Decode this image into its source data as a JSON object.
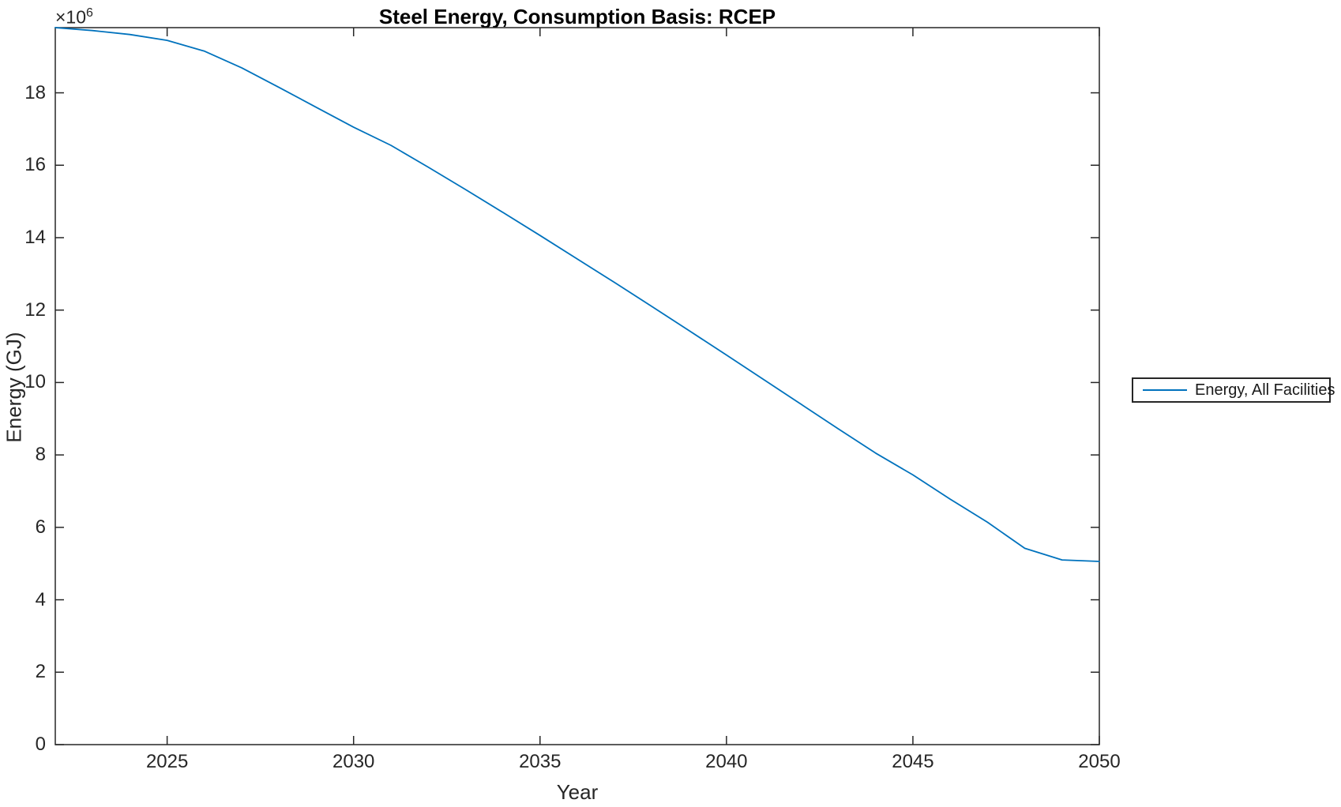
{
  "figure": {
    "title": "Steel Energy, Consumption Basis: RCEP",
    "xlabel": "Year",
    "ylabel": "Energy (GJ)",
    "y_axis_multiplier_base": "×10",
    "y_axis_multiplier_exponent": "6",
    "legend": {
      "position": "outside-right",
      "entries": [
        {
          "label": "Energy, All Facilities",
          "color": "#0072BD"
        }
      ]
    },
    "colors": {
      "line": "#0072BD",
      "axis": "#262626",
      "text": "#1a1a1a",
      "background": "#ffffff"
    }
  },
  "chart_data": {
    "type": "line",
    "title": "Steel Energy, Consumption Basis: RCEP",
    "xlabel": "Year",
    "ylabel": "Energy (GJ)",
    "y_unit": "GJ, values in millions (×10^6)",
    "grid": false,
    "legend_position": "outside-right",
    "xlim": [
      2022,
      2050
    ],
    "ylim": [
      0,
      19.8
    ],
    "xticks": [
      2025,
      2030,
      2035,
      2040,
      2045,
      2050
    ],
    "yticks": [
      0,
      2,
      4,
      6,
      8,
      10,
      12,
      14,
      16,
      18
    ],
    "series": [
      {
        "name": "Energy, All Facilities",
        "color": "#0072BD",
        "x": [
          2022,
          2023,
          2024,
          2025,
          2026,
          2027,
          2028,
          2029,
          2030,
          2031,
          2032,
          2033,
          2034,
          2035,
          2036,
          2037,
          2038,
          2039,
          2040,
          2041,
          2042,
          2043,
          2044,
          2045,
          2046,
          2047,
          2048,
          2049,
          2050
        ],
        "y": [
          19.8,
          19.72,
          19.61,
          19.45,
          19.15,
          18.69,
          18.15,
          17.6,
          17.05,
          16.55,
          15.95,
          15.33,
          14.7,
          14.06,
          13.41,
          12.76,
          12.1,
          11.43,
          10.76,
          10.08,
          9.4,
          8.72,
          8.05,
          7.45,
          6.78,
          6.14,
          5.42,
          5.1,
          5.06
        ]
      }
    ]
  }
}
